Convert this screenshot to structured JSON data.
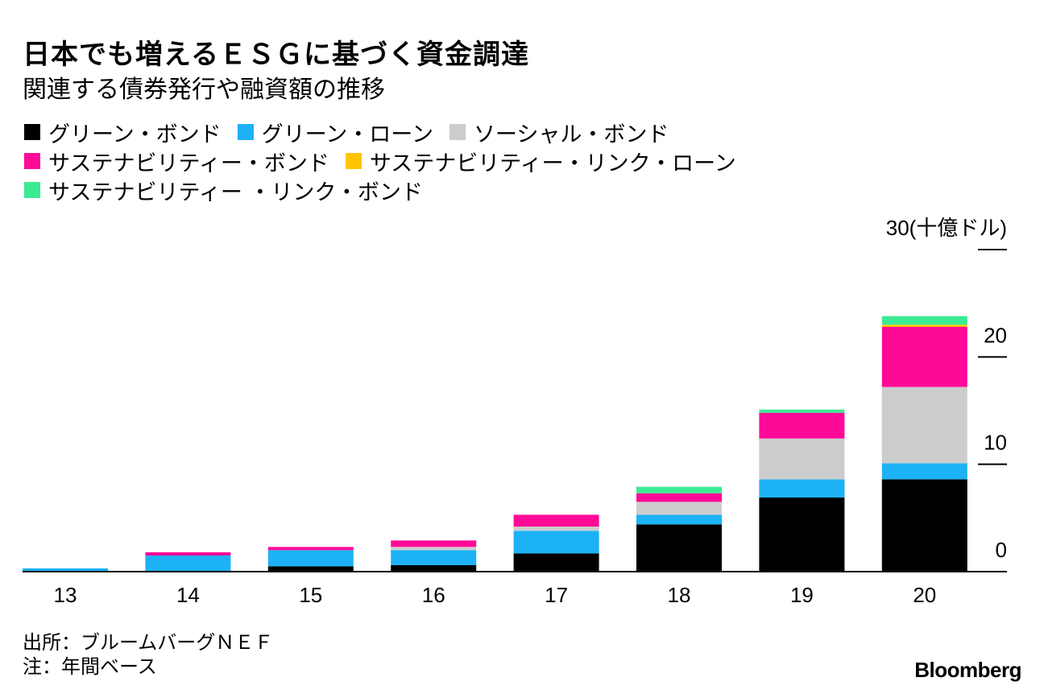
{
  "title": "日本でも増えるＥＳＧに基づく資金調達",
  "subtitle": "関連する債券発行や融資額の推移",
  "legend": [
    {
      "label": "グリーン・ボンド",
      "color": "#000000"
    },
    {
      "label": "グリーン・ローン",
      "color": "#1CB2F5"
    },
    {
      "label": "ソーシャル・ボンド",
      "color": "#CCCCCC"
    },
    {
      "label": "サステナビリティー・ボンド",
      "color": "#FF0A97"
    },
    {
      "label": "サステナビリティー・リンク・ローン",
      "color": "#FFC400"
    },
    {
      "label": "サステナビリティー ・リンク・ボンド",
      "color": "#3BEB93"
    }
  ],
  "y_unit_label": "30(十億ドル)",
  "source": "出所：ブルームバーグＮＥＦ",
  "note": "注：年間ベース",
  "logo": "Bloomberg",
  "chart_data": {
    "type": "bar",
    "stacked": true,
    "categories": [
      "13",
      "14",
      "15",
      "16",
      "17",
      "18",
      "19",
      "20"
    ],
    "series": [
      {
        "name": "グリーン・ボンド",
        "color": "#000000",
        "values": [
          0,
          0,
          0.5,
          0.6,
          1.7,
          4.4,
          6.9,
          8.6
        ]
      },
      {
        "name": "グリーン・ローン",
        "color": "#1CB2F5",
        "values": [
          0.3,
          1.5,
          1.5,
          1.4,
          2.1,
          0.9,
          1.7,
          1.5
        ]
      },
      {
        "name": "ソーシャル・ボンド",
        "color": "#CCCCCC",
        "values": [
          0,
          0,
          0,
          0.3,
          0.4,
          1.2,
          3.8,
          7.1
        ]
      },
      {
        "name": "サステナビリティー・ボンド",
        "color": "#FF0A97",
        "values": [
          0,
          0.3,
          0.3,
          0.6,
          1.1,
          0.8,
          2.4,
          5.6
        ]
      },
      {
        "name": "サステナビリティー・リンク・ローン",
        "color": "#FFC400",
        "values": [
          0,
          0,
          0,
          0,
          0,
          0,
          0,
          0.2
        ]
      },
      {
        "name": "サステナビリティー ・リンク・ボンド",
        "color": "#3BEB93",
        "values": [
          0,
          0,
          0,
          0,
          0,
          0.6,
          0.3,
          0.8
        ]
      }
    ],
    "yticks": [
      0,
      10,
      20,
      30
    ],
    "ylim": [
      0,
      30
    ],
    "ylabel": "30(十億ドル)",
    "xlabel": "",
    "grid": false,
    "legend_position": "top-left"
  }
}
